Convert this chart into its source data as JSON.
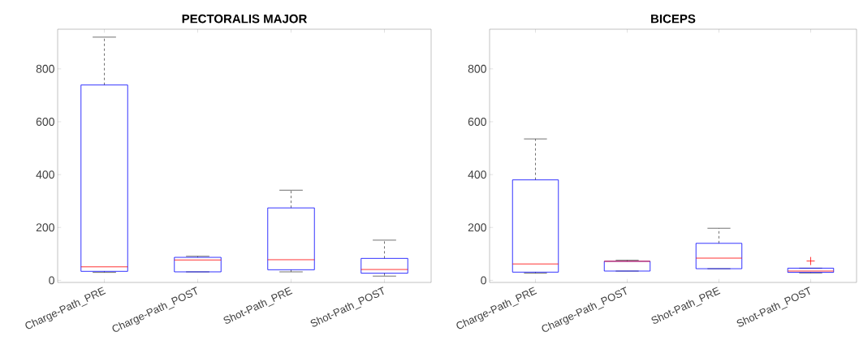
{
  "chart_data": [
    {
      "type": "box",
      "title": "PECTORALIS MAJOR",
      "categories": [
        "Charge-Path_PRE",
        "Charge-Path_POST",
        "Shot-Path_PRE",
        "Shot-Path_POST"
      ],
      "ylim": [
        -8,
        950
      ],
      "yticks": [
        0,
        200,
        400,
        600,
        800
      ],
      "grid": false,
      "series": [
        {
          "color": "#0000ff",
          "boxes": [
            {
              "low": 30,
              "q1": 34,
              "median": 51,
              "q3": 739,
              "high": 920
            },
            {
              "low": 32,
              "q1": 32,
              "median": 77,
              "q3": 87,
              "high": 91
            },
            {
              "low": 32,
              "q1": 40,
              "median": 78,
              "q3": 274,
              "high": 341
            },
            {
              "low": 16,
              "q1": 27,
              "median": 41,
              "q3": 83,
              "high": 152
            }
          ]
        }
      ]
    },
    {
      "type": "box",
      "title": "BICEPS",
      "categories": [
        "Charge-Path_PRE",
        "Charge-Path_POST",
        "Shot-Path_PRE",
        "Shot-Path_POST"
      ],
      "ylim": [
        -8,
        950
      ],
      "yticks": [
        0,
        200,
        400,
        600,
        800
      ],
      "grid": false,
      "series": [
        {
          "color": "#0000ff",
          "boxes": [
            {
              "low": 27,
              "q1": 31,
              "median": 62,
              "q3": 380,
              "high": 535
            },
            {
              "low": 35,
              "q1": 35,
              "median": 72,
              "q3": 72,
              "high": 76
            },
            {
              "low": 44,
              "q1": 44,
              "median": 84,
              "q3": 140,
              "high": 197
            },
            {
              "low": 28,
              "q1": 30,
              "median": 35,
              "q3": 46,
              "high": 46,
              "outliers": [
                73
              ]
            }
          ]
        }
      ]
    }
  ]
}
